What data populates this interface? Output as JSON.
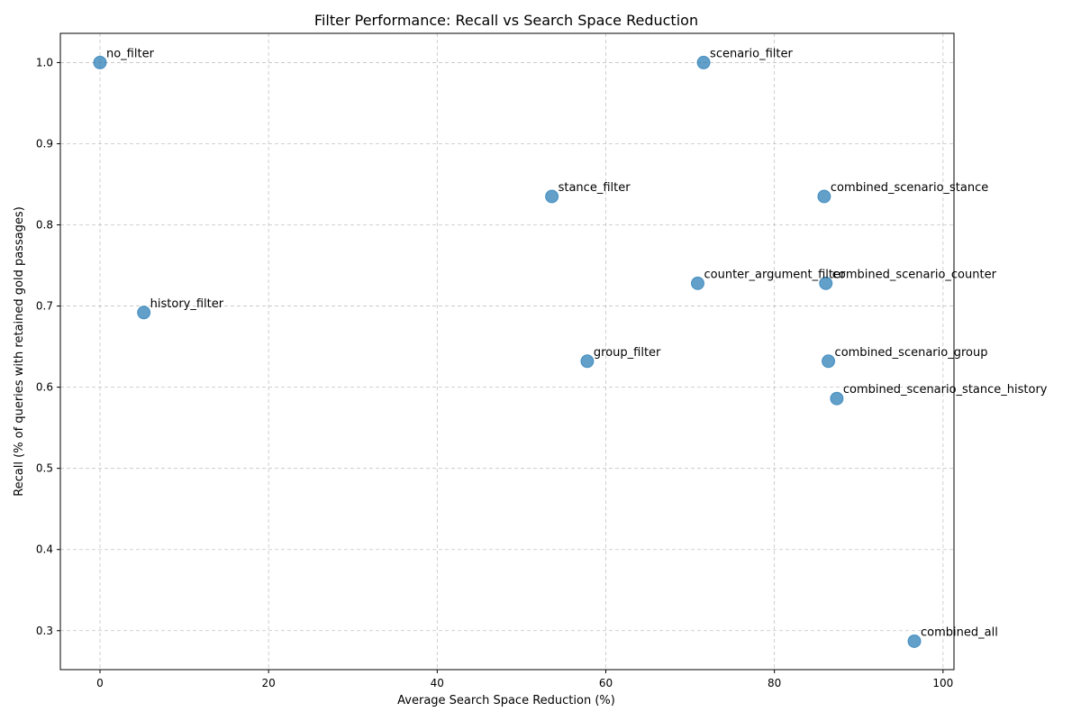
{
  "chart_data": {
    "type": "scatter",
    "title": "Filter Performance: Recall vs Search Space Reduction",
    "xlabel": "Average Search Space Reduction (%)",
    "ylabel": "Recall (% of queries with retained gold passages)",
    "xlim": [
      -4.7,
      101.3
    ],
    "ylim": [
      0.252,
      1.036
    ],
    "xticks": [
      "0",
      "20",
      "40",
      "60",
      "80",
      "100"
    ],
    "xtick_values": [
      0,
      20,
      40,
      60,
      80,
      100
    ],
    "yticks": [
      "0.3",
      "0.4",
      "0.5",
      "0.6",
      "0.7",
      "0.8",
      "0.9",
      "1.0"
    ],
    "ytick_values": [
      0.3,
      0.4,
      0.5,
      0.6,
      0.7,
      0.8,
      0.9,
      1.0
    ],
    "grid": true,
    "marker_color": "#1f77b4",
    "points": [
      {
        "label": "no_filter",
        "x": 0.0,
        "y": 1.0
      },
      {
        "label": "scenario_filter",
        "x": 71.6,
        "y": 1.0
      },
      {
        "label": "stance_filter",
        "x": 53.6,
        "y": 0.835
      },
      {
        "label": "combined_scenario_stance",
        "x": 85.9,
        "y": 0.835
      },
      {
        "label": "counter_argument_filter",
        "x": 70.9,
        "y": 0.728
      },
      {
        "label": "combined_scenario_counter",
        "x": 86.1,
        "y": 0.728
      },
      {
        "label": "history_filter",
        "x": 5.2,
        "y": 0.692
      },
      {
        "label": "group_filter",
        "x": 57.8,
        "y": 0.632
      },
      {
        "label": "combined_scenario_group",
        "x": 86.4,
        "y": 0.632
      },
      {
        "label": "combined_scenario_stance_history",
        "x": 87.4,
        "y": 0.586
      },
      {
        "label": "combined_all",
        "x": 96.6,
        "y": 0.287
      }
    ]
  }
}
